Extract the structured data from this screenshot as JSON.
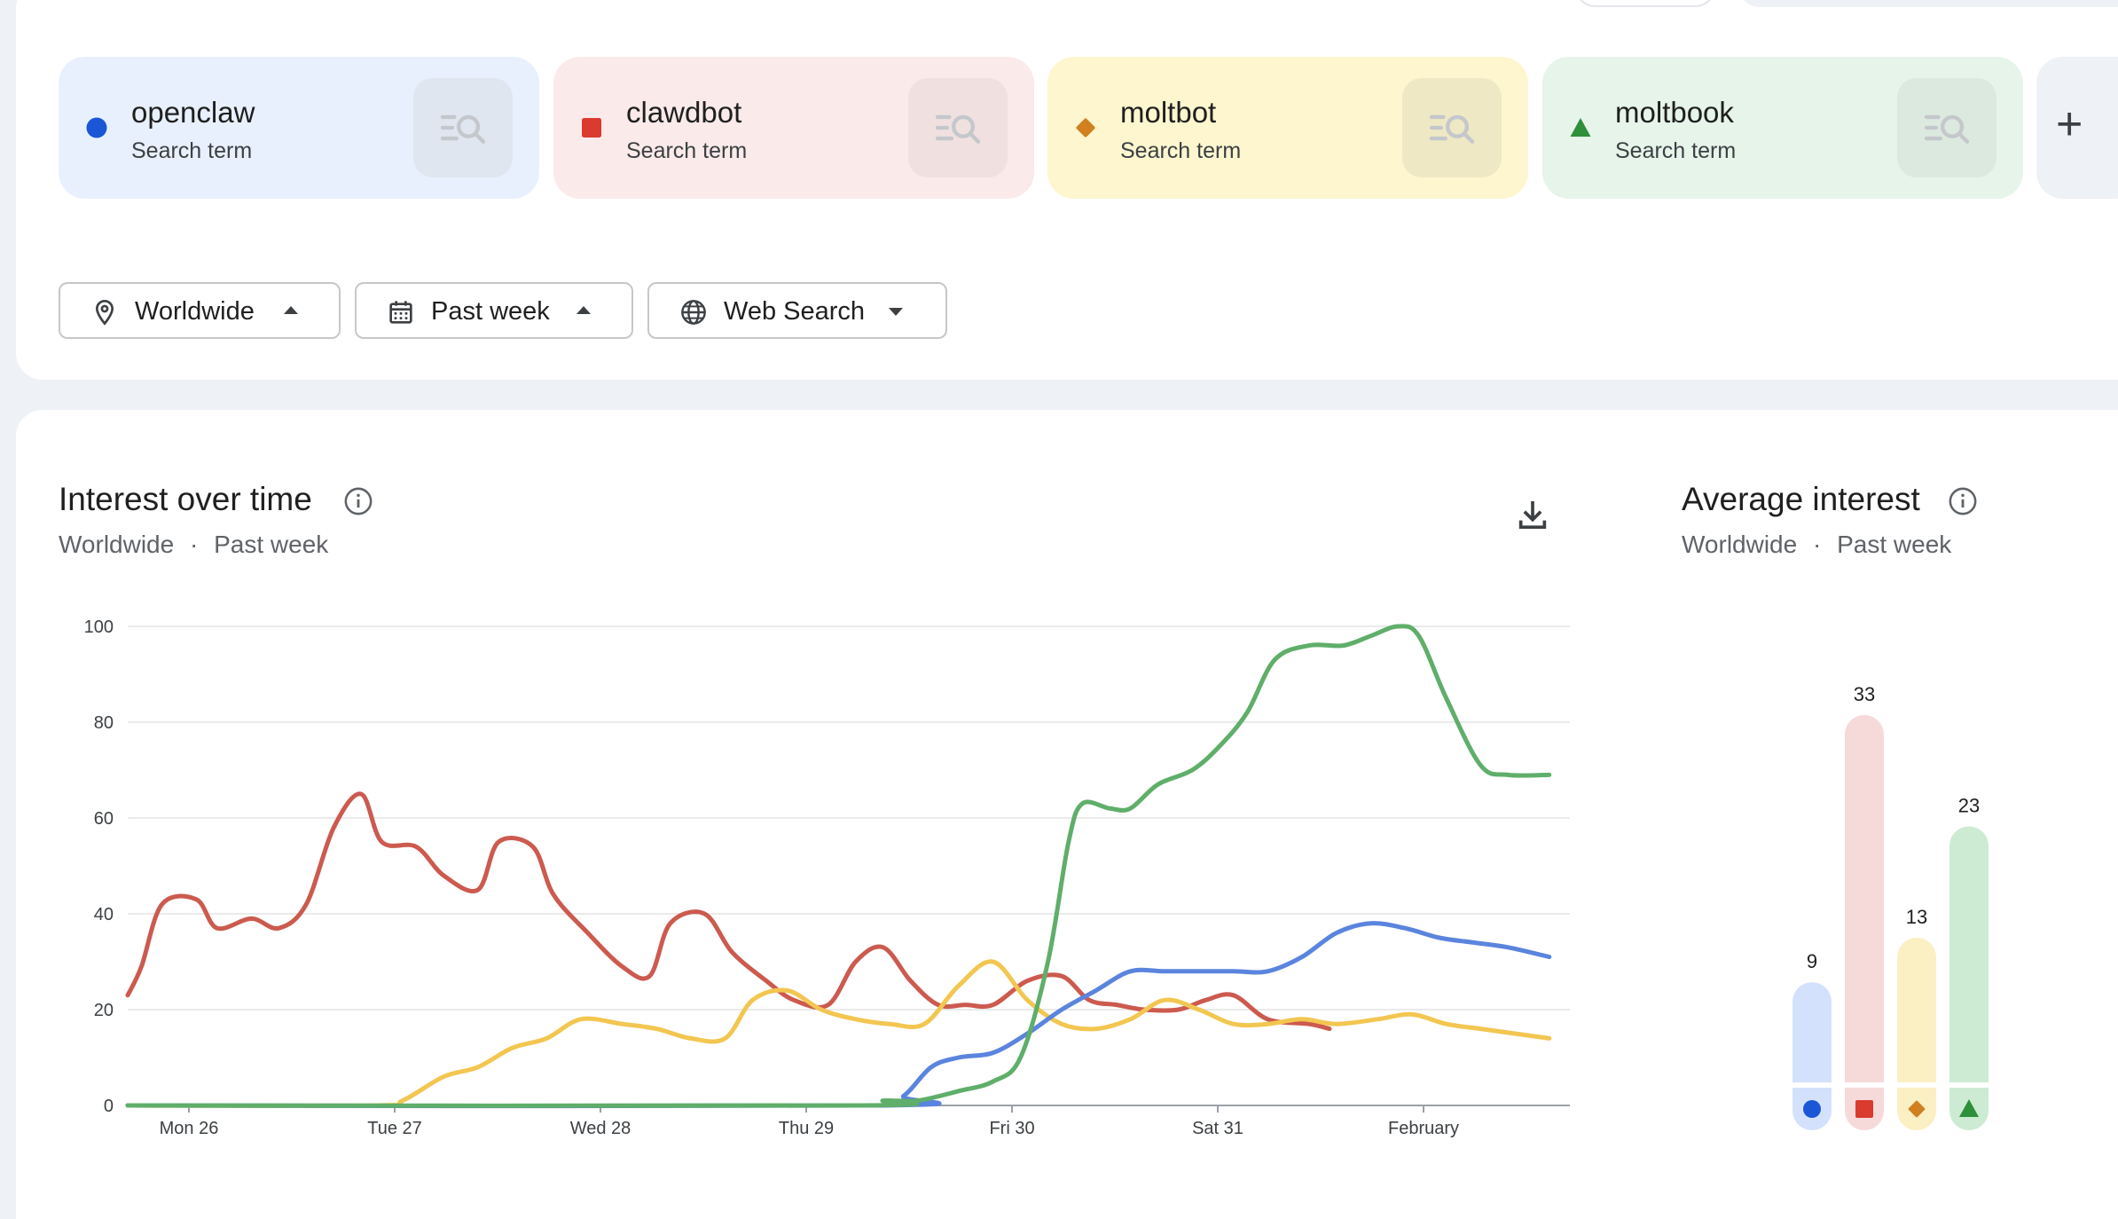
{
  "terms": [
    {
      "name": "openclaw",
      "sub": "Search term",
      "color": "#1a56d6",
      "card_bg": "#e8f0fd",
      "btn_bg": "#dfe6f0",
      "marker": "circle"
    },
    {
      "name": "clawdbot",
      "sub": "Search term",
      "color": "#d93b2f",
      "card_bg": "#fbeaea",
      "btn_bg": "#f0e0df",
      "marker": "square"
    },
    {
      "name": "moltbot",
      "sub": "Search term",
      "color": "#d0801e",
      "card_bg": "#fdf6cf",
      "btn_bg": "#efe8c4",
      "marker": "diamond"
    },
    {
      "name": "moltbook",
      "sub": "Search term",
      "color": "#2f8f3a",
      "card_bg": "#e6f4ea",
      "btn_bg": "#dce9de",
      "marker": "triangle"
    }
  ],
  "filters": {
    "location": "Worldwide",
    "time": "Past week",
    "property": "Web Search"
  },
  "interest_over_time": {
    "title": "Interest over time",
    "subtitle_location": "Worldwide",
    "subtitle_sep": "·",
    "subtitle_time": "Past week"
  },
  "average_interest": {
    "title": "Average interest",
    "subtitle_location": "Worldwide",
    "subtitle_sep": "·",
    "subtitle_time": "Past week"
  },
  "chart_data": [
    {
      "type": "line",
      "title": "Interest over time",
      "x_labels": [
        "Mon 26",
        "Tue 27",
        "Wed 28",
        "Thu 29",
        "Fri 30",
        "Sat 31",
        "February"
      ],
      "y_ticks": [
        0,
        20,
        40,
        60,
        80,
        100
      ],
      "ylim": [
        0,
        100
      ],
      "grid": true,
      "series": [
        {
          "name": "clawdbot",
          "color": "#cc5a4f",
          "points": [
            [
              0,
              23
            ],
            [
              0.1,
              29
            ],
            [
              0.25,
              42
            ],
            [
              0.5,
              43
            ],
            [
              0.65,
              37
            ],
            [
              0.9,
              39
            ],
            [
              1.1,
              37
            ],
            [
              1.3,
              42
            ],
            [
              1.5,
              58
            ],
            [
              1.7,
              65
            ],
            [
              1.85,
              55
            ],
            [
              2.1,
              54
            ],
            [
              2.3,
              48
            ],
            [
              2.55,
              45
            ],
            [
              2.7,
              55
            ],
            [
              2.95,
              54
            ],
            [
              3.1,
              44
            ],
            [
              3.35,
              36
            ],
            [
              3.6,
              29
            ],
            [
              3.8,
              27
            ],
            [
              3.95,
              38
            ],
            [
              4.2,
              40
            ],
            [
              4.4,
              32
            ],
            [
              4.65,
              26
            ],
            [
              4.85,
              22
            ],
            [
              5.1,
              21
            ],
            [
              5.3,
              30
            ],
            [
              5.5,
              33
            ],
            [
              5.7,
              26
            ],
            [
              5.9,
              21
            ],
            [
              6.1,
              21
            ],
            [
              6.3,
              21
            ],
            [
              6.55,
              26
            ],
            [
              6.8,
              27
            ],
            [
              7.0,
              22
            ],
            [
              7.2,
              21
            ],
            [
              7.4,
              20
            ],
            [
              7.65,
              20
            ],
            [
              7.85,
              22
            ],
            [
              8.05,
              23
            ],
            [
              8.3,
              18
            ],
            [
              8.6,
              17
            ],
            [
              8.75,
              16
            ]
          ]
        },
        {
          "name": "moltbot",
          "color": "#f2c650",
          "points": [
            [
              0,
              0
            ],
            [
              1.8,
              0
            ],
            [
              2.0,
              1
            ],
            [
              2.3,
              6
            ],
            [
              2.55,
              8
            ],
            [
              2.8,
              12
            ],
            [
              3.05,
              14
            ],
            [
              3.3,
              18
            ],
            [
              3.6,
              17
            ],
            [
              3.85,
              16
            ],
            [
              4.1,
              14
            ],
            [
              4.35,
              14
            ],
            [
              4.55,
              22
            ],
            [
              4.8,
              24
            ],
            [
              5.05,
              20
            ],
            [
              5.3,
              18
            ],
            [
              5.55,
              17
            ],
            [
              5.8,
              17
            ],
            [
              6.05,
              25
            ],
            [
              6.3,
              30
            ],
            [
              6.55,
              22
            ],
            [
              6.8,
              17
            ],
            [
              7.05,
              16
            ],
            [
              7.3,
              18
            ],
            [
              7.55,
              22
            ],
            [
              7.8,
              20
            ],
            [
              8.05,
              17
            ],
            [
              8.3,
              17
            ],
            [
              8.55,
              18
            ],
            [
              8.8,
              17
            ],
            [
              9.1,
              18
            ],
            [
              9.35,
              19
            ],
            [
              9.6,
              17
            ],
            [
              9.85,
              16
            ],
            [
              10.1,
              15
            ],
            [
              10.35,
              14
            ]
          ]
        },
        {
          "name": "openclaw",
          "color": "#5a84de",
          "points": [
            [
              0,
              0
            ],
            [
              5.45,
              0
            ],
            [
              5.65,
              2
            ],
            [
              5.85,
              8
            ],
            [
              6.05,
              10
            ],
            [
              6.3,
              11
            ],
            [
              6.55,
              15
            ],
            [
              6.8,
              20
            ],
            [
              7.05,
              24
            ],
            [
              7.3,
              28
            ],
            [
              7.55,
              28
            ],
            [
              7.8,
              28
            ],
            [
              8.05,
              28
            ],
            [
              8.3,
              28
            ],
            [
              8.55,
              31
            ],
            [
              8.8,
              36
            ],
            [
              9.05,
              38
            ],
            [
              9.3,
              37
            ],
            [
              9.55,
              35
            ],
            [
              9.8,
              34
            ],
            [
              10.05,
              33
            ],
            [
              10.35,
              31
            ]
          ]
        },
        {
          "name": "moltbook",
          "color": "#5fae6a",
          "points": [
            [
              0,
              0
            ],
            [
              5.3,
              0
            ],
            [
              5.5,
              1
            ],
            [
              5.75,
              1
            ],
            [
              6.05,
              3
            ],
            [
              6.3,
              5
            ],
            [
              6.5,
              10
            ],
            [
              6.7,
              30
            ],
            [
              6.85,
              55
            ],
            [
              6.95,
              63
            ],
            [
              7.15,
              62
            ],
            [
              7.3,
              62
            ],
            [
              7.5,
              67
            ],
            [
              7.75,
              70
            ],
            [
              7.95,
              75
            ],
            [
              8.15,
              82
            ],
            [
              8.35,
              93
            ],
            [
              8.6,
              96
            ],
            [
              8.85,
              96
            ],
            [
              9.05,
              98
            ],
            [
              9.25,
              100
            ],
            [
              9.4,
              98
            ],
            [
              9.6,
              85
            ],
            [
              9.85,
              71
            ],
            [
              10.05,
              69
            ],
            [
              10.35,
              69
            ]
          ]
        }
      ]
    },
    {
      "type": "bar",
      "title": "Average interest",
      "categories": [
        "openclaw",
        "clawdbot",
        "moltbot",
        "moltbook"
      ],
      "values": [
        9,
        33,
        13,
        23
      ],
      "value_labels": [
        "9",
        "33",
        "13",
        "23"
      ],
      "bar_colors": [
        "#d4e1fc",
        "#f6dada",
        "#fbefc4",
        "#cdebd3"
      ],
      "icon_colors": [
        "#1a56d6",
        "#d93b2f",
        "#d0801e",
        "#2f8f3a"
      ]
    }
  ]
}
